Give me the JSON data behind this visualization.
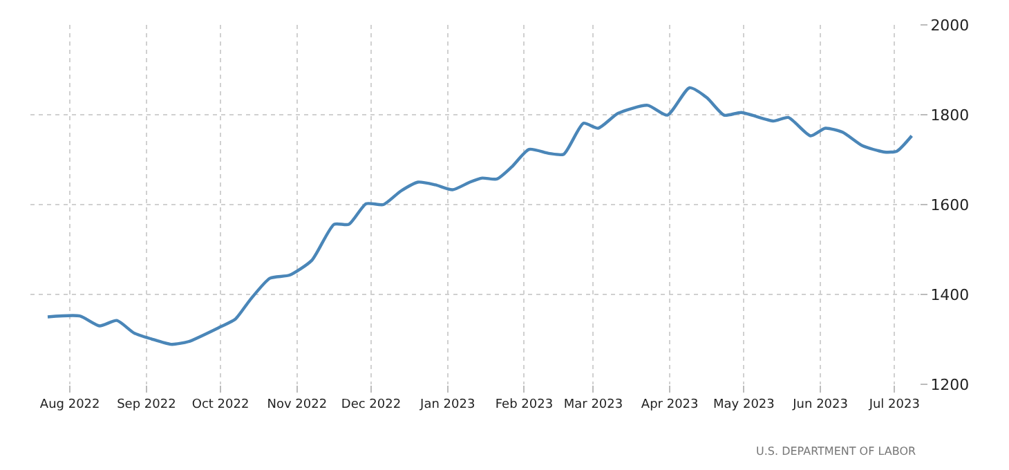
{
  "chart_data": {
    "type": "line",
    "x": [
      "2022-07-23",
      "2022-08-05",
      "2022-08-13",
      "2022-08-20",
      "2022-08-27",
      "2022-09-03",
      "2022-09-11",
      "2022-09-18",
      "2022-10-01",
      "2022-10-07",
      "2022-10-13",
      "2022-10-21",
      "2022-10-29",
      "2022-11-07",
      "2022-11-16",
      "2022-11-22",
      "2022-11-29",
      "2022-12-06",
      "2022-12-13",
      "2022-12-20",
      "2022-12-27",
      "2023-01-03",
      "2023-01-10",
      "2023-01-15",
      "2023-01-21",
      "2023-01-27",
      "2023-02-03",
      "2023-02-11",
      "2023-02-17",
      "2023-02-25",
      "2023-03-03",
      "2023-03-11",
      "2023-03-23",
      "2023-03-31",
      "2023-04-09",
      "2023-04-16",
      "2023-04-23",
      "2023-04-30",
      "2023-05-13",
      "2023-05-19",
      "2023-05-28",
      "2023-06-03",
      "2023-06-10",
      "2023-06-18",
      "2023-06-27",
      "2023-07-02",
      "2023-07-08"
    ],
    "series": [
      {
        "color": "#4a86b8",
        "values": [
          1350,
          1352,
          1330,
          1342,
          1314,
          1301,
          1289,
          1295,
          1328,
          1345,
          1388,
          1436,
          1443,
          1476,
          1556,
          1556,
          1602,
          1600,
          1630,
          1650,
          1644,
          1633,
          1650,
          1659,
          1657,
          1684,
          1723,
          1714,
          1712,
          1781,
          1770,
          1803,
          1821,
          1799,
          1860,
          1838,
          1799,
          1805,
          1786,
          1794,
          1753,
          1770,
          1761,
          1731,
          1717,
          1719,
          1753
        ]
      }
    ],
    "xlim": [
      "2022-07-16",
      "2023-07-11"
    ],
    "xticks": [
      {
        "value": "2022-08-01",
        "label": "Aug 2022"
      },
      {
        "value": "2022-09-01",
        "label": "Sep 2022"
      },
      {
        "value": "2022-10-01",
        "label": "Oct 2022"
      },
      {
        "value": "2022-11-01",
        "label": "Nov 2022"
      },
      {
        "value": "2022-12-01",
        "label": "Dec 2022"
      },
      {
        "value": "2023-01-01",
        "label": "Jan 2023"
      },
      {
        "value": "2023-02-01",
        "label": "Feb 2023"
      },
      {
        "value": "2023-03-01",
        "label": "Mar 2023"
      },
      {
        "value": "2023-04-01",
        "label": "Apr 2023"
      },
      {
        "value": "2023-05-01",
        "label": "May 2023"
      },
      {
        "value": "2023-06-01",
        "label": "Jun 2023"
      },
      {
        "value": "2023-07-01",
        "label": "Jul 2023"
      }
    ],
    "ylim": [
      1200,
      2000
    ],
    "yticks": [
      1200,
      1400,
      1600,
      1800,
      2000
    ],
    "grid": true,
    "marker": "none",
    "line_style": "solid",
    "annotations": [
      "U.S. DEPARTMENT OF LABOR"
    ]
  }
}
